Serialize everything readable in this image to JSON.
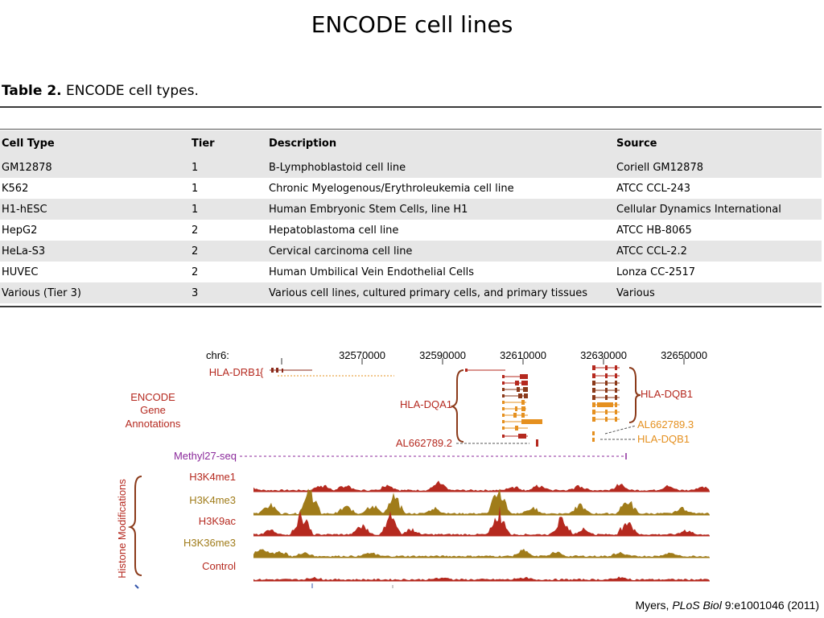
{
  "slide": {
    "title": "ENCODE cell lines"
  },
  "table": {
    "caption_bold": "Table 2.",
    "caption_rest": " ENCODE cell types.",
    "headers": [
      "Cell Type",
      "Tier",
      "Description",
      "Source"
    ],
    "rows": [
      [
        "GM12878",
        "1",
        "B-Lymphoblastoid cell line",
        "Coriell GM12878"
      ],
      [
        "K562",
        "1",
        "Chronic Myelogenous/Erythroleukemia cell line",
        "ATCC CCL-243"
      ],
      [
        "H1-hESC",
        "1",
        "Human Embryonic Stem Cells, line H1",
        "Cellular Dynamics International"
      ],
      [
        "HepG2",
        "2",
        "Hepatoblastoma cell line",
        "ATCC HB-8065"
      ],
      [
        "HeLa-S3",
        "2",
        "Cervical carcinoma cell line",
        "ATCC CCL-2.2"
      ],
      [
        "HUVEC",
        "2",
        "Human Umbilical Vein Endothelial Cells",
        "Lonza CC-2517"
      ],
      [
        "Various (Tier 3)",
        "3",
        "Various cell lines, cultured primary cells, and primary tissues",
        "Various"
      ]
    ]
  },
  "figure": {
    "chrom": "chr6:",
    "positions": [
      "32570000",
      "32590000",
      "32610000",
      "32630000",
      "32650000"
    ],
    "gene_section": [
      "ENCODE",
      "Gene",
      "Annotations"
    ],
    "genes": {
      "drb1": "HLA-DRB1",
      "dqa1": "HLA-DQA1",
      "al2": "AL662789.2",
      "dqb1": "HLA-DQB1",
      "al3": "AL662789.3",
      "dqb1b": "HLA-DQB1"
    },
    "methyl": "Methyl27-seq",
    "histone_section": "Histone Modifications",
    "tracks": [
      "H3K4me1",
      "H3K4me3",
      "H3K9ac",
      "H3K36me3",
      "Control"
    ],
    "colors": {
      "red": "#b5291f",
      "gold": "#a07c1a",
      "orange": "#e5901f",
      "purple": "#8b2a9b",
      "brown": "#8b3a1a"
    }
  },
  "citation": {
    "author": "Myers, ",
    "journal": "PLoS Biol",
    "ref": " 9:e1001046 (2011)"
  }
}
